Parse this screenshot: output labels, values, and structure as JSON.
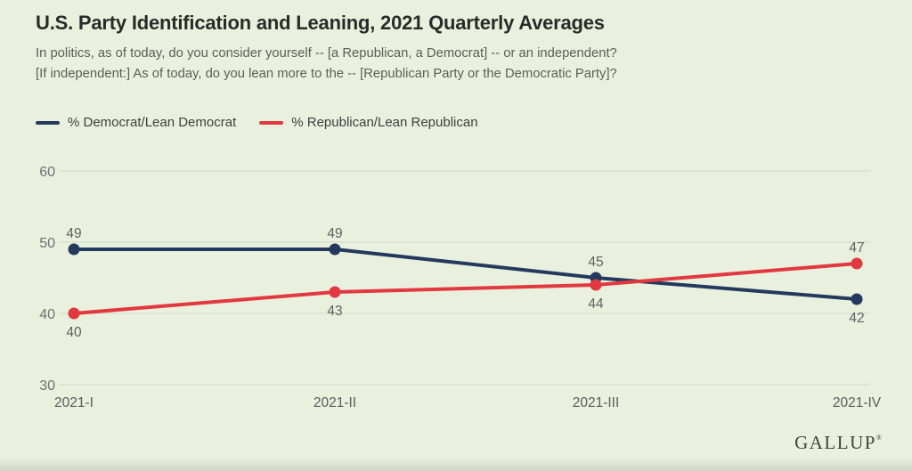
{
  "page": {
    "background": "#e9f1de"
  },
  "header": {
    "title": "U.S. Party Identification and Leaning, 2021 Quarterly Averages",
    "subtitle_line1": "In politics, as of today, do you consider yourself -- [a Republican, a Democrat] -- or an independent?",
    "subtitle_line2": "[If independent:] As of today, do you lean more to the -- [Republican Party or the Democratic Party]?"
  },
  "legend": {
    "items": [
      {
        "label": "% Democrat/Lean Democrat",
        "color": "#24395e"
      },
      {
        "label": "% Republican/Lean Republican",
        "color": "#e2383f"
      }
    ]
  },
  "chart_data": {
    "type": "line",
    "categories": [
      "2021-I",
      "2021-II",
      "2021-III",
      "2021-IV"
    ],
    "series": [
      {
        "name": "% Democrat/Lean Democrat",
        "color": "#24395e",
        "values": [
          49,
          49,
          45,
          42
        ]
      },
      {
        "name": "% Republican/Lean Republican",
        "color": "#e2383f",
        "values": [
          40,
          43,
          44,
          47
        ]
      }
    ],
    "title": "U.S. Party Identification and Leaning, 2021 Quarterly Averages",
    "xlabel": "",
    "ylabel": "",
    "ylim": [
      30,
      60
    ],
    "yticks": [
      30,
      40,
      50,
      60
    ],
    "grid": "horizontal",
    "legend_position": "top-left",
    "value_labels": true,
    "colors": {
      "gridline": "#d8dccc",
      "ytick_label": "#6e7173",
      "xtick_label": "#595c5e",
      "value_label": "#5e6164"
    }
  },
  "footer": {
    "logo_text": "GALLUP",
    "logo_mark": "®"
  }
}
